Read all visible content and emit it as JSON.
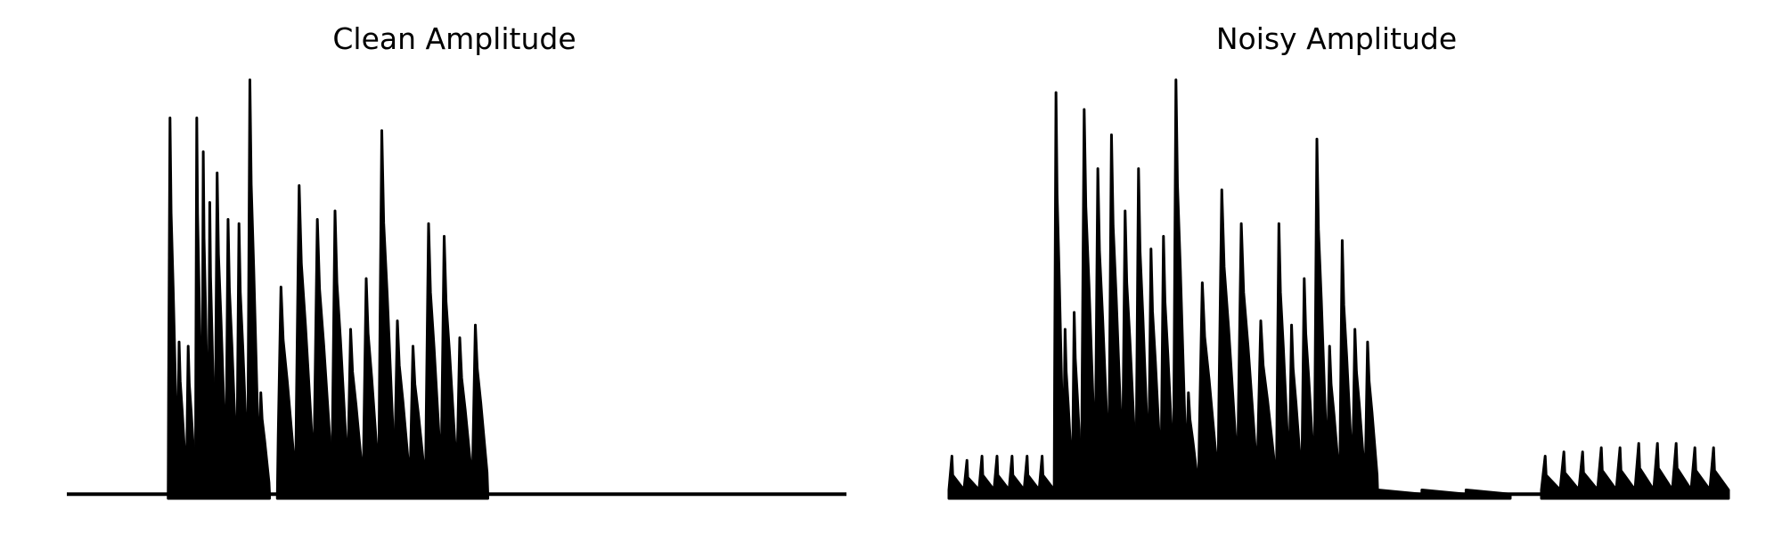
{
  "chart_data": [
    {
      "type": "line",
      "title": "Clean Amplitude",
      "xlabel": "",
      "ylabel": "",
      "grid": false,
      "axes_visible": false,
      "color": "#000000",
      "ylim": [
        0,
        1.0
      ],
      "segments": [
        {
          "x_range": [
            0.13,
            0.165
          ],
          "peaks": [
            0.9,
            0.37,
            0.36
          ]
        },
        {
          "x_range": [
            0.165,
            0.19
          ],
          "peaks": [
            0.9,
            0.82,
            0.7
          ]
        },
        {
          "x_range": [
            0.19,
            0.26
          ],
          "peaks": [
            0.77,
            0.66,
            0.65,
            0.99,
            0.25
          ]
        },
        {
          "x_range": [
            0.27,
            0.34
          ],
          "peaks": [
            0.5,
            0.74,
            0.66
          ]
        },
        {
          "x_range": [
            0.34,
            0.42
          ],
          "peaks": [
            0.68,
            0.4,
            0.52,
            0.87
          ]
        },
        {
          "x_range": [
            0.42,
            0.54
          ],
          "peaks": [
            0.42,
            0.36,
            0.65,
            0.62,
            0.38,
            0.41
          ]
        }
      ],
      "quiet_level": 0.01
    },
    {
      "type": "line",
      "title": "Noisy Amplitude",
      "xlabel": "",
      "ylabel": "",
      "grid": false,
      "axes_visible": false,
      "color": "#000000",
      "ylim": [
        0,
        1.0
      ],
      "segments": [
        {
          "x_range": [
            0.0,
            0.135
          ],
          "peaks": [
            0.1,
            0.09,
            0.1,
            0.1,
            0.1,
            0.1,
            0.1
          ],
          "kind": "noise"
        },
        {
          "x_range": [
            0.135,
            0.17
          ],
          "peaks": [
            0.96,
            0.4,
            0.44
          ]
        },
        {
          "x_range": [
            0.17,
            0.24
          ],
          "peaks": [
            0.92,
            0.78,
            0.86,
            0.68
          ]
        },
        {
          "x_range": [
            0.24,
            0.32
          ],
          "peaks": [
            0.78,
            0.59,
            0.62,
            0.99,
            0.25
          ]
        },
        {
          "x_range": [
            0.32,
            0.42
          ],
          "peaks": [
            0.51,
            0.73,
            0.65,
            0.42
          ]
        },
        {
          "x_range": [
            0.42,
            0.55
          ],
          "peaks": [
            0.65,
            0.41,
            0.52,
            0.85,
            0.36,
            0.61,
            0.4,
            0.37
          ]
        },
        {
          "x_range": [
            0.55,
            0.72
          ],
          "peaks": [
            0.02,
            0.02,
            0.02
          ],
          "kind": "quiet"
        },
        {
          "x_range": [
            0.76,
            1.0
          ],
          "peaks": [
            0.1,
            0.11,
            0.11,
            0.12,
            0.12,
            0.13,
            0.13,
            0.13,
            0.12,
            0.12
          ],
          "kind": "noise"
        }
      ],
      "quiet_level": 0.01
    }
  ]
}
